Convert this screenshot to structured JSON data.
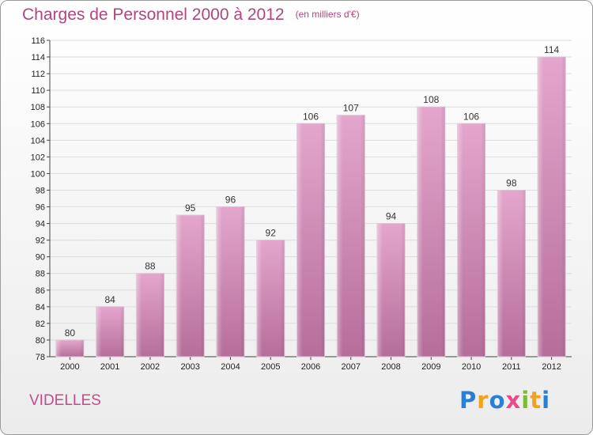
{
  "title": "Charges de Personnel 2000 à 2012",
  "subtitle": "(en milliers d'€)",
  "commune": "VIDELLES",
  "logo": {
    "text": "Proxiti",
    "letters": [
      "P",
      "r",
      "o",
      "x",
      "i",
      "t",
      "i"
    ],
    "colors": [
      "#2a7fd4",
      "#f0a31c",
      "#2a7fd4",
      "#e94b8a",
      "#7dbb2e",
      "#f0a31c",
      "#2a7fd4"
    ]
  },
  "colors": {
    "bar_light": "#e4a6cd",
    "bar_dark": "#b56e9a",
    "title": "#b0457f"
  },
  "chart_data": {
    "type": "bar",
    "title": "Charges de Personnel 2000 à 2012",
    "subtitle": "(en milliers d'€)",
    "categories": [
      "2000",
      "2001",
      "2002",
      "2003",
      "2004",
      "2005",
      "2006",
      "2007",
      "2008",
      "2009",
      "2010",
      "2011",
      "2012"
    ],
    "values": [
      80,
      84,
      88,
      95,
      96,
      92,
      106,
      107,
      94,
      108,
      106,
      98,
      114
    ],
    "ylim": [
      78,
      116
    ],
    "yticks": [
      78,
      80,
      82,
      84,
      86,
      88,
      90,
      92,
      94,
      96,
      98,
      100,
      102,
      104,
      106,
      108,
      110,
      112,
      114,
      116
    ],
    "grid": true
  }
}
